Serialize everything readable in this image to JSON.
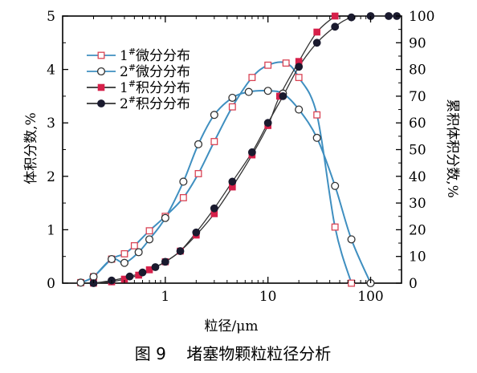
{
  "chart_data": {
    "type": "line",
    "xlabel": "粒径/μm",
    "ylabel_left": "体积分数,%",
    "ylabel_right": "累积体积分数,%",
    "x_scale": "log",
    "xlim": [
      0.1,
      200
    ],
    "ylim_left": [
      0,
      5
    ],
    "ylim_right": [
      0,
      100
    ],
    "x_ticks": [
      1,
      10,
      100
    ],
    "x_tick_labels": [
      "1",
      "10",
      "100"
    ],
    "y_left_ticks": [
      0,
      1,
      2,
      3,
      4,
      5
    ],
    "y_left_tick_labels": [
      "0",
      "1",
      "2",
      "3",
      "4",
      "5"
    ],
    "y_right_ticks": [
      0,
      10,
      20,
      30,
      40,
      50,
      60,
      70,
      80,
      90,
      100
    ],
    "y_right_tick_labels": [
      "0",
      "10",
      "20",
      "30",
      "40",
      "50",
      "60",
      "70",
      "80",
      "90",
      "100"
    ],
    "legend_placement": "top-left",
    "grid": false,
    "line_color": "#3f8fc0",
    "series": [
      {
        "name": "1#微分分布",
        "legend_prefix": "1",
        "legend_sup": "#",
        "legend_suffix": "微分分布",
        "axis": "left",
        "marker": "open-square",
        "marker_color": "#d94455",
        "x": [
          0.15,
          0.2,
          0.3,
          0.4,
          0.5,
          0.7,
          1.0,
          1.5,
          2.1,
          3.0,
          4.5,
          7.0,
          10,
          15,
          20,
          30,
          45,
          65
        ],
        "y": [
          0.01,
          0.12,
          0.45,
          0.55,
          0.7,
          0.98,
          1.25,
          1.6,
          2.05,
          2.65,
          3.3,
          3.85,
          4.08,
          4.12,
          3.85,
          3.15,
          1.05,
          0.0
        ]
      },
      {
        "name": "2#微分分布",
        "legend_prefix": "2",
        "legend_sup": "#",
        "legend_suffix": "微分分布",
        "axis": "left",
        "marker": "open-circle",
        "marker_color": "#333333",
        "x": [
          0.15,
          0.2,
          0.3,
          0.4,
          0.55,
          0.7,
          1.0,
          1.5,
          2.1,
          3.0,
          4.5,
          6.5,
          10,
          14,
          20,
          30,
          45,
          65,
          100
        ],
        "y": [
          0.01,
          0.12,
          0.45,
          0.38,
          0.58,
          0.82,
          1.22,
          1.9,
          2.6,
          3.15,
          3.47,
          3.58,
          3.6,
          3.55,
          3.25,
          2.72,
          1.82,
          0.82,
          0.0
        ]
      },
      {
        "name": "1#积分分布",
        "legend_prefix": "1",
        "legend_sup": "#",
        "legend_suffix": "积分分布",
        "axis": "right",
        "marker": "filled-square",
        "marker_color": "#d6204a",
        "x": [
          0.2,
          0.3,
          0.4,
          0.55,
          0.7,
          1.0,
          1.4,
          2.0,
          3.0,
          4.5,
          7.0,
          10,
          13,
          20,
          30,
          45
        ],
        "y": [
          0,
          0.5,
          1.5,
          3,
          5,
          8,
          12,
          18,
          26,
          36,
          48,
          59,
          70,
          83,
          94,
          100
        ]
      },
      {
        "name": "2#积分分布",
        "legend_prefix": "2",
        "legend_sup": "#",
        "legend_suffix": "积分分布",
        "axis": "right",
        "marker": "filled-circle",
        "marker_color": "#1a1a2e",
        "x": [
          0.2,
          0.3,
          0.45,
          0.6,
          0.8,
          1.0,
          1.4,
          2.0,
          3.0,
          4.5,
          7.0,
          10,
          14,
          20,
          30,
          45,
          65,
          100,
          150,
          180
        ],
        "y": [
          0,
          1,
          2.5,
          4,
          6,
          8,
          12,
          19,
          28,
          38,
          49,
          60,
          70,
          81,
          90,
          96,
          99.5,
          100,
          100,
          100
        ]
      }
    ]
  },
  "caption": "图 9    堵塞物颗粒粒径分析"
}
